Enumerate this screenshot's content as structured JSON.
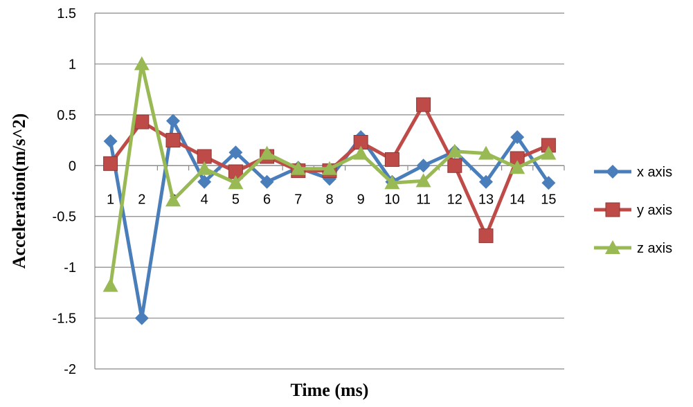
{
  "chart_data": {
    "type": "line",
    "title": "",
    "xlabel": "Time (ms)",
    "ylabel": "Acceleration(m/s^2)",
    "categories": [
      "1",
      "2",
      "3",
      "4",
      "5",
      "6",
      "7",
      "8",
      "9",
      "10",
      "11",
      "12",
      "13",
      "14",
      "15"
    ],
    "ylim": [
      -2,
      1.5
    ],
    "yticks": [
      "1.5",
      "1",
      "0.5",
      "0",
      "-0.5",
      "-1",
      "-1.5",
      "-2"
    ],
    "ytick_values": [
      1.5,
      1,
      0.5,
      0,
      -0.5,
      -1,
      -1.5,
      -2
    ],
    "grid": true,
    "legend_position": "right",
    "series": [
      {
        "name": "x axis",
        "color": "#4A7EBB",
        "marker": "diamond",
        "values": [
          0.24,
          -1.5,
          0.44,
          -0.16,
          0.13,
          -0.16,
          -0.02,
          -0.13,
          0.28,
          -0.16,
          0.0,
          0.14,
          -0.16,
          0.28,
          -0.17
        ]
      },
      {
        "name": "y axis",
        "color": "#BE4B48",
        "marker": "square",
        "values": [
          0.02,
          0.43,
          0.25,
          0.09,
          -0.06,
          0.09,
          -0.05,
          -0.05,
          0.23,
          0.06,
          0.6,
          0.0,
          -0.69,
          0.07,
          0.2
        ]
      },
      {
        "name": "z axis",
        "color": "#98B954",
        "marker": "triangle",
        "values": [
          -1.18,
          1.0,
          -0.34,
          -0.03,
          -0.17,
          0.12,
          -0.03,
          -0.03,
          0.12,
          -0.17,
          -0.15,
          0.14,
          0.12,
          -0.02,
          0.12
        ]
      }
    ]
  }
}
